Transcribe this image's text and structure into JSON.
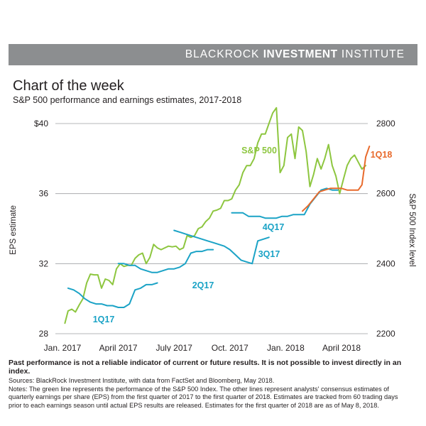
{
  "header": {
    "brand_light": "BLACKROCK",
    "brand_bold": "INVESTMENT",
    "brand_tail": "INSTITUTE"
  },
  "title": "Chart of the week",
  "subtitle": "S&P 500 performance and earnings estimates, 2017-2018",
  "footer": {
    "disclaimer": "Past performance is not a reliable indicator of current or future results. It is not possible to invest directly in an index.",
    "sources": "Sources: BlackRock Investment Institute, with data from FactSet and Bloomberg, May 2018.",
    "notes_1": "Notes: The green line represents the performance of the S&P 500 Index. The other lines represent analysts' consensus estimates of",
    "notes_2": "quarterly earnings per share (EPS) from the first quarter of 2017 to the first quarter of 2018. Estimates are tracked from 60 trading days",
    "notes_3": "prior to each earnings season until actual EPS results are released. Estimates for the first quarter of 2018 are as of May 8, 2018."
  },
  "colors": {
    "green": "#8dc63f",
    "blue": "#1ba3c6",
    "orange": "#e86a2c",
    "grid": "#9d9fa2",
    "banner": "#8c8e90"
  },
  "chart_data": {
    "type": "line",
    "left_axis": {
      "label": "EPS estimate",
      "ticks": [
        "$40",
        "36",
        "32",
        "28"
      ],
      "range": [
        28,
        40
      ]
    },
    "right_axis": {
      "label": "S&P 500 Index level",
      "ticks": [
        "2800",
        "2600",
        "2400",
        "2200"
      ],
      "range": [
        2200,
        2800
      ]
    },
    "x_ticks": [
      "Jan. 2017",
      "April 2017",
      "July 2017",
      "Oct. 2017",
      "Jan. 2018",
      "April 2018"
    ],
    "x_range_months": [
      0,
      17
    ],
    "grid": "horizontal",
    "series": [
      {
        "name": "S&P 500",
        "axis": "right",
        "color": "#8dc63f",
        "x": [
          0.13,
          0.3,
          0.5,
          0.7,
          0.9,
          1.1,
          1.3,
          1.5,
          1.7,
          1.9,
          2.1,
          2.3,
          2.5,
          2.7,
          2.9,
          3.1,
          3.3,
          3.5,
          3.7,
          3.9,
          4.1,
          4.3,
          4.5,
          4.7,
          4.9,
          5.1,
          5.3,
          5.5,
          5.7,
          5.9,
          6.1,
          6.3,
          6.5,
          6.7,
          6.9,
          7.1,
          7.3,
          7.5,
          7.7,
          7.9,
          8.1,
          8.3,
          8.5,
          8.7,
          8.9,
          9.1,
          9.3,
          9.5,
          9.7,
          9.9,
          10.1,
          10.3,
          10.5,
          10.7,
          10.9,
          11.1,
          11.3,
          11.5,
          11.7,
          11.9,
          12.1,
          12.3,
          12.5,
          12.7,
          12.9,
          13.1,
          13.3,
          13.5,
          13.7,
          13.9,
          14.1,
          14.3,
          14.5,
          14.7,
          14.9,
          15.1,
          15.3,
          15.5,
          15.7,
          15.9,
          16.1,
          16.3
        ],
        "values": [
          2230,
          2265,
          2270,
          2262,
          2282,
          2300,
          2345,
          2370,
          2368,
          2368,
          2330,
          2356,
          2352,
          2340,
          2385,
          2400,
          2392,
          2395,
          2395,
          2415,
          2425,
          2430,
          2400,
          2418,
          2455,
          2445,
          2440,
          2445,
          2450,
          2448,
          2450,
          2440,
          2445,
          2480,
          2475,
          2480,
          2500,
          2505,
          2520,
          2530,
          2550,
          2553,
          2558,
          2580,
          2580,
          2585,
          2610,
          2625,
          2660,
          2680,
          2680,
          2700,
          2745,
          2770,
          2770,
          2800,
          2830,
          2845,
          2660,
          2680,
          2760,
          2770,
          2700,
          2790,
          2780,
          2720,
          2620,
          2655,
          2700,
          2670,
          2700,
          2740,
          2680,
          2650,
          2600,
          2640,
          2680,
          2700,
          2710,
          2690,
          2670,
          2680
        ],
        "label": "S&P 500"
      },
      {
        "name": "1Q17",
        "axis": "left",
        "color": "#1ba3c6",
        "x": [
          0.3,
          0.6,
          0.9,
          1.2,
          1.5,
          1.8,
          2.1,
          2.4,
          2.7,
          3.0,
          3.3,
          3.6,
          3.9,
          4.2,
          4.5,
          4.8,
          5.1
        ],
        "values": [
          30.6,
          30.5,
          30.3,
          30.0,
          29.8,
          29.7,
          29.7,
          29.6,
          29.6,
          29.5,
          29.5,
          29.7,
          30.5,
          30.6,
          30.8,
          30.8,
          30.9
        ],
        "label": "1Q17"
      },
      {
        "name": "2Q17",
        "axis": "left",
        "color": "#1ba3c6",
        "x": [
          3.0,
          3.3,
          3.6,
          3.9,
          4.2,
          4.5,
          4.8,
          5.1,
          5.4,
          5.7,
          6.0,
          6.3,
          6.6,
          6.9,
          7.2,
          7.5,
          7.8,
          8.1
        ],
        "values": [
          32.0,
          32.0,
          31.9,
          31.9,
          31.7,
          31.6,
          31.5,
          31.5,
          31.6,
          31.7,
          31.7,
          31.8,
          32.0,
          32.6,
          32.7,
          32.7,
          32.8,
          32.8
        ],
        "label": "2Q17"
      },
      {
        "name": "3Q17",
        "axis": "left",
        "color": "#1ba3c6",
        "x": [
          6.0,
          6.3,
          6.6,
          6.9,
          7.2,
          7.5,
          7.8,
          8.1,
          8.4,
          8.7,
          9.0,
          9.3,
          9.6,
          9.9,
          10.2,
          10.5,
          10.8,
          11.1
        ],
        "values": [
          33.9,
          33.8,
          33.7,
          33.6,
          33.5,
          33.4,
          33.3,
          33.2,
          33.1,
          33.0,
          32.8,
          32.5,
          32.2,
          32.1,
          32.0,
          33.3,
          33.4,
          33.5
        ],
        "label": "3Q17"
      },
      {
        "name": "4Q17",
        "axis": "left",
        "color": "#1ba3c6",
        "x": [
          9.1,
          9.4,
          9.7,
          10.0,
          10.3,
          10.6,
          10.9,
          11.2,
          11.5,
          11.8,
          12.1,
          12.4,
          12.7,
          13.0,
          13.3,
          13.6,
          13.9,
          14.2,
          14.5,
          14.8
        ],
        "values": [
          34.9,
          34.9,
          34.9,
          34.7,
          34.7,
          34.7,
          34.6,
          34.6,
          34.6,
          34.7,
          34.7,
          34.8,
          34.8,
          34.8,
          35.4,
          35.8,
          36.2,
          36.3,
          36.2,
          36.2
        ],
        "label": "4Q17"
      },
      {
        "name": "1Q18",
        "axis": "left",
        "color": "#e86a2c",
        "x": [
          12.9,
          13.2,
          13.5,
          13.8,
          14.1,
          14.4,
          14.7,
          15.0,
          15.3,
          15.6,
          15.9,
          16.1,
          16.3,
          16.5
        ],
        "values": [
          35.0,
          35.3,
          35.7,
          36.1,
          36.2,
          36.3,
          36.3,
          36.3,
          36.2,
          36.2,
          36.2,
          36.5,
          38.1,
          38.7
        ],
        "label": "1Q18"
      }
    ]
  }
}
